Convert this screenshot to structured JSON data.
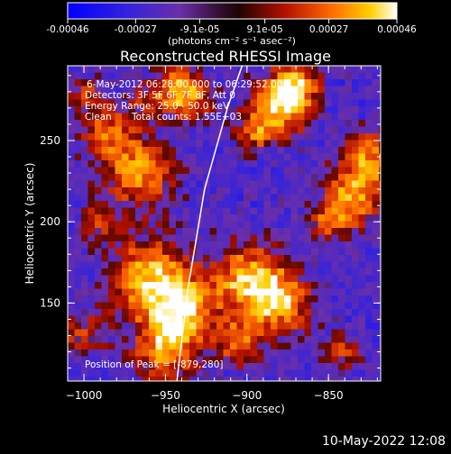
{
  "colorbar": {
    "ticks": [
      "-0.00046",
      "-0.00027",
      "-9.1e-05",
      "9.1e-05",
      "0.00027",
      "0.00046"
    ],
    "tick_values": [
      -0.00046,
      -0.00027,
      -9.1e-05,
      9.1e-05,
      0.00027,
      0.00046
    ],
    "range": [
      -0.00046,
      0.00046
    ],
    "units_line": "(photons cm⁻² s⁻¹ asec⁻²)"
  },
  "chart_data": {
    "type": "heatmap",
    "title": "Reconstructed RHESSI Image",
    "xlabel": "Heliocentric X (arcsec)",
    "ylabel": "Heliocentric Y (arcsec)",
    "xlim": [
      -1010,
      -818
    ],
    "ylim": [
      102,
      296
    ],
    "x_ticks": [
      -1000,
      -950,
      -900,
      -850
    ],
    "y_ticks": [
      150,
      200,
      250
    ],
    "x_tick_labels": [
      "−1000",
      "−950",
      "−900",
      "−850"
    ],
    "y_tick_labels": [
      "150",
      "200",
      "250"
    ],
    "annotations": [
      "6-May-2012 06:28:00.000 to 06:29:52.000",
      "Detectors: 3F 5F 6F 7F 8F, Att 0",
      "Energy Range: 25.0 - 50.0 keV",
      "Clean",
      "Total counts: 1.55E+03"
    ],
    "peak_label": "Position of Peak = [-879,280]",
    "peak": [
      -879,
      280
    ],
    "limb_points": [
      [
        -943,
        102
      ],
      [
        -936,
        160
      ],
      [
        -926,
        220
      ],
      [
        -912,
        270
      ],
      [
        -903,
        296
      ]
    ]
  },
  "timestamp": "10-May-2022 12:08"
}
